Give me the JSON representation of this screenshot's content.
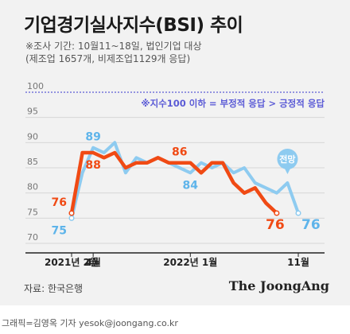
{
  "title": "기업경기실사지수(BSI) 추이",
  "subtitle_line1": "※조사 기간: 10월11~18일, 법인기업 대상",
  "subtitle_line2": "(제조업 1657개, 비제조업1129개 응답)",
  "note": "※지수100 이하 = 부정적 응답 > 긍정적 응답",
  "source": "자료: 한국은행",
  "brand": "The JoongAng",
  "credit": "그래픽=김영옥 기자 yesok@joongang.co.kr",
  "colors": {
    "manufacturing": "#f04a14",
    "forecast": "#8ecbf0",
    "grid": "#d6d6d6",
    "ref_line": "#5b5bd6"
  },
  "chart_data": {
    "type": "line",
    "ylim": [
      70,
      100
    ],
    "yticks": [
      70,
      75,
      80,
      85,
      90,
      95,
      100
    ],
    "ytick_labels": [
      "70",
      "75",
      "80",
      "85",
      "90",
      "95",
      "100"
    ],
    "reference_line": 100,
    "x": [
      "2021-02",
      "2021-03",
      "2021-04",
      "2021-05",
      "2021-06",
      "2021-07",
      "2021-08",
      "2021-09",
      "2021-10",
      "2021-11",
      "2021-12",
      "2022-01",
      "2022-02",
      "2022-03",
      "2022-04",
      "2022-05",
      "2022-06",
      "2022-07",
      "2022-08",
      "2022-09",
      "2022-10",
      "2022-11"
    ],
    "x_tick_labels": [
      {
        "x": "2021-02",
        "label": "2021년 2월"
      },
      {
        "x": "2021-04",
        "label": "4월"
      },
      {
        "x": "2022-01",
        "label": "2022년 1월"
      },
      {
        "x": "2022-11",
        "label": "11월"
      }
    ],
    "series": [
      {
        "name": "",
        "color_key": "forecast",
        "values": [
          75,
          84,
          89,
          88,
          90,
          84,
          87,
          86,
          87,
          86,
          85,
          84,
          86,
          85,
          86,
          84,
          85,
          82,
          81,
          80,
          82,
          76
        ]
      },
      {
        "name": "",
        "color_key": "manufacturing",
        "values": [
          76,
          88,
          88,
          87,
          88,
          85,
          86,
          86,
          87,
          86,
          86,
          86,
          84,
          86,
          86,
          82,
          80,
          81,
          78,
          76,
          null,
          null
        ]
      }
    ],
    "data_labels": [
      {
        "series": 1,
        "index": 0,
        "text": "76",
        "position": "above"
      },
      {
        "series": 0,
        "index": 0,
        "text": "75",
        "position": "below"
      },
      {
        "series": 0,
        "index": 2,
        "text": "89",
        "position": "above"
      },
      {
        "series": 1,
        "index": 2,
        "text": "88",
        "position": "below"
      },
      {
        "series": 1,
        "index": 10,
        "text": "86",
        "position": "above"
      },
      {
        "series": 0,
        "index": 11,
        "text": "84",
        "position": "below"
      },
      {
        "series": 1,
        "index": 19,
        "text": "76",
        "position": "below"
      },
      {
        "series": 0,
        "index": 21,
        "text": "76",
        "position": "below"
      }
    ],
    "callout": {
      "text": "전망",
      "series": 0,
      "index": 20
    }
  }
}
